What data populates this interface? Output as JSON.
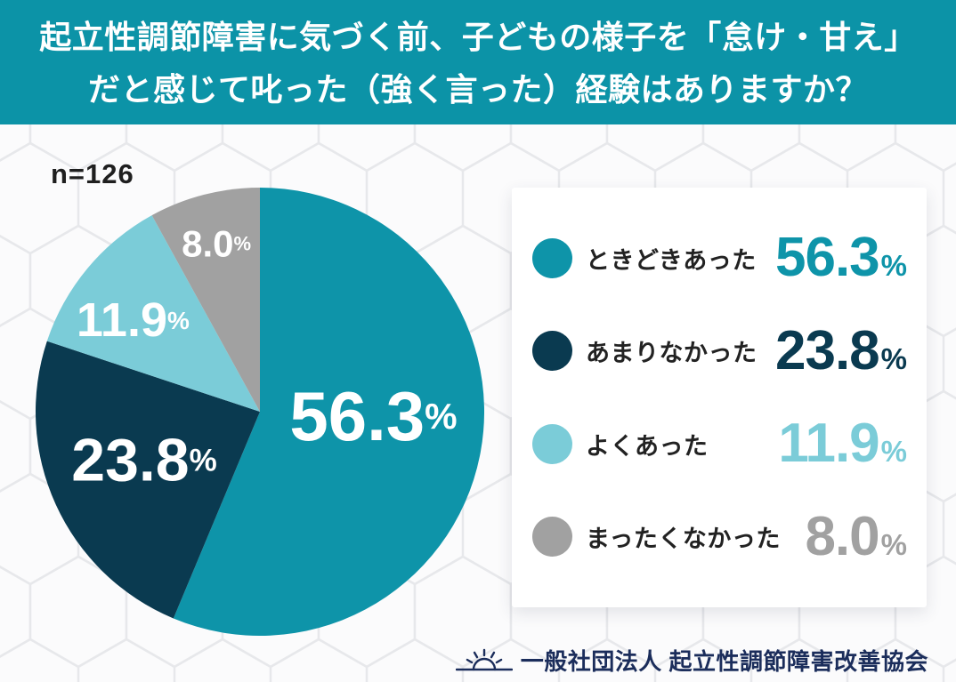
{
  "header": {
    "title_line1": "起立性調節障害に気づく前、子どもの様子を「怠け・甘え」",
    "title_line2": "だと感じて叱った（強く言った）経験はありますか？"
  },
  "sample": {
    "label": "n=126"
  },
  "chart_data": {
    "type": "pie",
    "title": "起立性調節障害に気づく前、子どもの様子を「怠け・甘え」だと感じて叱った（強く言った）経験はありますか？",
    "sample_size": 126,
    "start_angle_deg": 0,
    "direction": "clockwise",
    "value_suffix": "%",
    "legend_position": "right",
    "slices": [
      {
        "label": "ときどきあった",
        "value": 56.3,
        "value_display": "56.3",
        "color": "#0E94A9"
      },
      {
        "label": "あまりなかった",
        "value": 23.8,
        "value_display": "23.8",
        "color": "#0A3A50"
      },
      {
        "label": "よくあった",
        "value": 11.9,
        "value_display": "11.9",
        "color": "#7BCCD8"
      },
      {
        "label": "まったくなかった",
        "value": 8.0,
        "value_display": "8.0",
        "color": "#A1A1A1"
      }
    ]
  },
  "footer": {
    "org_name": "一般社団法人 起立性調節障害改善協会"
  },
  "colors": {
    "header_bg": "#0C93A7",
    "card_bg": "#FFFFFF",
    "text_dark": "#222222",
    "footer_text": "#1B2D5B",
    "background": "#F4F5F6",
    "hex_fill": "#FBFBFC",
    "hex_line": "#E7E8EB",
    "pie_label_text": "#FFFFFF"
  }
}
